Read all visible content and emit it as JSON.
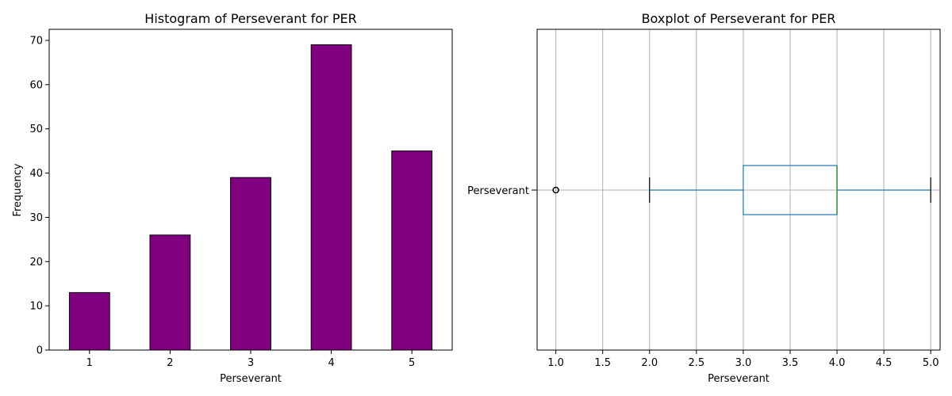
{
  "chart_data": [
    {
      "type": "bar",
      "title": "Histogram of Perseverant for PER",
      "xlabel": "Perseverant",
      "ylabel": "Frequency",
      "categories": [
        "1",
        "2",
        "3",
        "4",
        "5"
      ],
      "values": [
        13,
        26,
        39,
        69,
        45
      ],
      "ylim": [
        0,
        72.5
      ],
      "yticks": [
        0,
        10,
        20,
        30,
        40,
        50,
        60,
        70
      ],
      "bar_color": "#800080",
      "edge_color": "#000000",
      "grid": false
    },
    {
      "type": "boxplot",
      "title": "Boxplot of Perseverant for PER",
      "xlabel": "Perseverant",
      "category_label": "Perseverant",
      "xlim": [
        0.8,
        5.1
      ],
      "xticks": [
        "1.0",
        "1.5",
        "2.0",
        "2.5",
        "3.0",
        "3.5",
        "4.0",
        "4.5",
        "5.0"
      ],
      "whisker_low": 2.0,
      "q1": 3.0,
      "median": 4.0,
      "q3": 4.0,
      "whisker_high": 5.0,
      "outliers": [
        1.0
      ],
      "box_color": "#1f77b4",
      "median_color": "#2ca02c",
      "grid": true
    }
  ]
}
